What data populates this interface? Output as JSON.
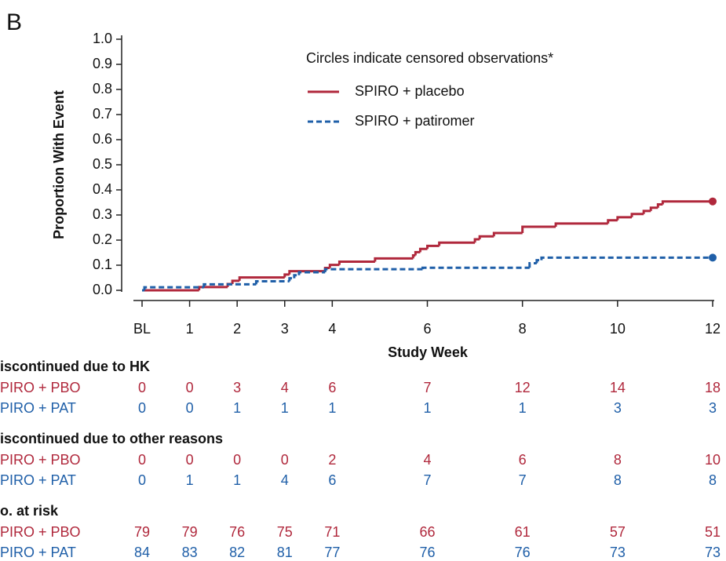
{
  "panel_label": "B",
  "chart_data": {
    "type": "step",
    "y_label": "Proportion With Event",
    "x_label": "Study Week",
    "legend_title": "Circles indicate censored observations*",
    "xlim": [
      0,
      12
    ],
    "xticks": [
      {
        "value": 0,
        "label": "BL"
      },
      1,
      2,
      3,
      4,
      6,
      8,
      10,
      12
    ],
    "ylim": [
      0,
      1
    ],
    "yticks": [
      {
        "value": 0,
        "label": "0.0"
      },
      {
        "value": 0.1,
        "label": "0.1"
      },
      {
        "value": 0.2,
        "label": "0.2"
      },
      {
        "value": 0.3,
        "label": "0.3"
      },
      {
        "value": 0.4,
        "label": "0.4"
      },
      {
        "value": 0.5,
        "label": "0.5"
      },
      {
        "value": 0.6,
        "label": "0.6"
      },
      {
        "value": 0.7,
        "label": "0.7"
      },
      {
        "value": 0.8,
        "label": "0.8"
      },
      {
        "value": 0.9,
        "label": "0.9"
      },
      {
        "value": 1,
        "label": "1.0"
      }
    ],
    "series": [
      {
        "name": "SPIRO + placebo",
        "color": "#b0283c",
        "dashed": false,
        "x": [
          0,
          1.2,
          1.8,
          1.9,
          2.05,
          3.0,
          3.1,
          3.85,
          3.95,
          4.15,
          4.9,
          5.7,
          5.75,
          5.85,
          6.0,
          6.25,
          7.0,
          7.1,
          7.4,
          8.0,
          8.7,
          9.8,
          10.0,
          10.3,
          10.55,
          10.7,
          10.85,
          10.95,
          12
        ],
        "values": [
          0,
          0.013,
          0.025,
          0.038,
          0.051,
          0.063,
          0.076,
          0.089,
          0.101,
          0.114,
          0.127,
          0.139,
          0.152,
          0.165,
          0.177,
          0.19,
          0.203,
          0.215,
          0.228,
          0.253,
          0.266,
          0.279,
          0.291,
          0.304,
          0.316,
          0.329,
          0.342,
          0.354,
          0.354
        ]
      },
      {
        "name": "SPIRO + patiromer",
        "color": "#1f5fa8",
        "dashed": true,
        "x": [
          0,
          0.05,
          1.3,
          2.4,
          3.1,
          3.2,
          3.3,
          3.85,
          5.9,
          8.15,
          8.3,
          8.4,
          12
        ],
        "values": [
          0,
          0.012,
          0.024,
          0.036,
          0.048,
          0.06,
          0.072,
          0.084,
          0.09,
          0.108,
          0.12,
          0.13,
          0.13
        ]
      }
    ],
    "tables": [
      {
        "title": "iscontinued due to HK",
        "rows": [
          {
            "label": "PIRO + PBO",
            "color": "#b0283c",
            "values": [
              0,
              0,
              3,
              4,
              6,
              7,
              12,
              14,
              18
            ]
          },
          {
            "label": "PIRO + PAT",
            "color": "#1f5fa8",
            "values": [
              0,
              0,
              1,
              1,
              1,
              1,
              1,
              3,
              3
            ]
          }
        ]
      },
      {
        "title": "iscontinued due to other reasons",
        "rows": [
          {
            "label": "PIRO + PBO",
            "color": "#b0283c",
            "values": [
              0,
              0,
              0,
              0,
              2,
              4,
              6,
              8,
              10
            ]
          },
          {
            "label": "PIRO + PAT",
            "color": "#1f5fa8",
            "values": [
              0,
              1,
              1,
              4,
              6,
              7,
              7,
              8,
              8
            ]
          }
        ]
      },
      {
        "title": "o. at risk",
        "rows": [
          {
            "label": "PIRO + PBO",
            "color": "#b0283c",
            "values": [
              79,
              79,
              76,
              75,
              71,
              66,
              61,
              57,
              51
            ]
          },
          {
            "label": "PIRO + PAT",
            "color": "#1f5fa8",
            "values": [
              84,
              83,
              82,
              81,
              77,
              76,
              76,
              73,
              73
            ]
          }
        ]
      }
    ]
  }
}
